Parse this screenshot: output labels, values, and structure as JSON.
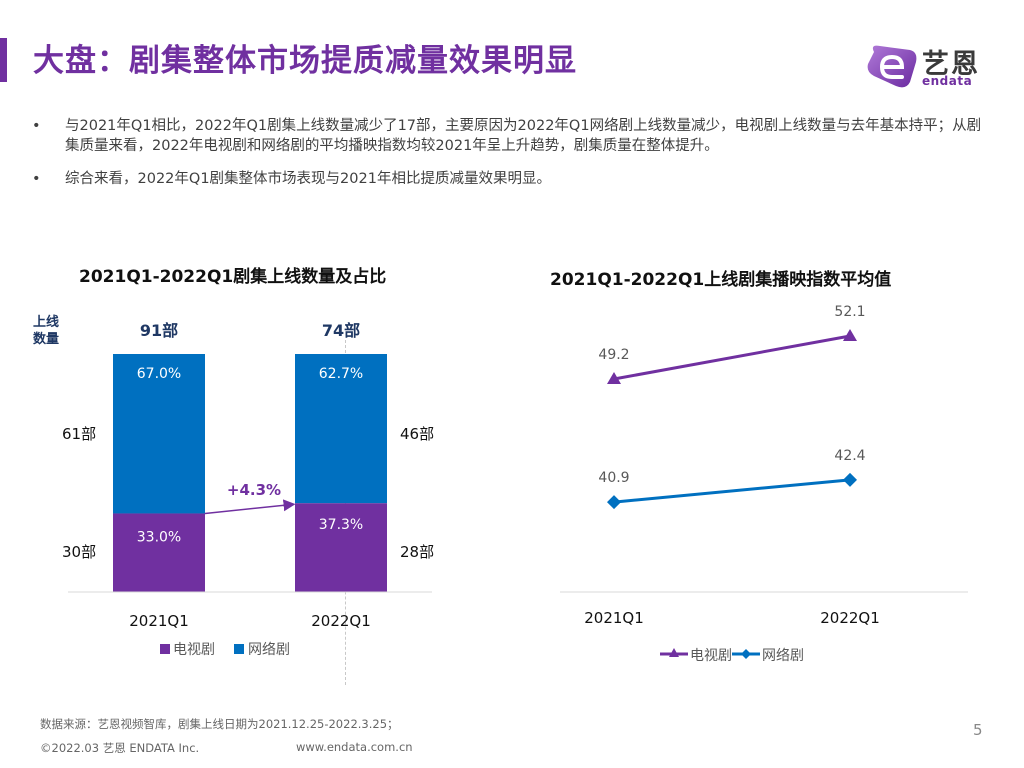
{
  "header": {
    "title": "大盘：剧集整体市场提质减量效果明显",
    "logo": {
      "cn": "艺恩",
      "en": "endata",
      "icon": "endata-e-logo-icon"
    }
  },
  "bullets": [
    "与2021年Q1相比，2022年Q1剧集上线数量减少了17部，主要原因为2022年Q1网络剧上线数量减少，电视剧上线数量与去年基本持平；从剧集质量来看，2022年电视剧和网络剧的平均播映指数均较2021年呈上升趋势，剧集质量在整体提升。",
    "综合来看，2022年Q1剧集整体市场表现与2021年相比提质减量效果明显。"
  ],
  "bullet_symbol": "•",
  "colors": {
    "accent": "#7030a0",
    "tv": "#7030a0",
    "net": "#0070c0",
    "total_label": "#1f3864"
  },
  "chart_data": [
    {
      "type": "bar",
      "stacked": true,
      "title": "2021Q1-2022Q1剧集上线数量及占比",
      "ylabel": "上线\n数量",
      "ylabel_lines": [
        "上线",
        "数量"
      ],
      "categories": [
        "2021Q1",
        "2022Q1"
      ],
      "totals": [
        91,
        74
      ],
      "total_labels": [
        "91部",
        "74部"
      ],
      "series": [
        {
          "name": "电视剧",
          "values": [
            30,
            28
          ],
          "value_labels": [
            "30部",
            "28部"
          ],
          "percent_labels": [
            "33.0%",
            "37.3%"
          ],
          "color": "#7030a0"
        },
        {
          "name": "网络剧",
          "values": [
            61,
            46
          ],
          "value_labels": [
            "61部",
            "46部"
          ],
          "percent_labels": [
            "67.0%",
            "62.7%"
          ],
          "color": "#0070c0"
        }
      ],
      "shares": {
        "电视剧": [
          33.0,
          37.3
        ],
        "网络剧": [
          67.0,
          62.7
        ]
      },
      "annotation": "+4.3%",
      "legend": [
        "电视剧",
        "网络剧"
      ],
      "legend_position": "bottom",
      "grid": false
    },
    {
      "type": "line",
      "title": "2021Q1-2022Q1上线剧集播映指数平均值",
      "categories": [
        "2021Q1",
        "2022Q1"
      ],
      "series": [
        {
          "name": "电视剧",
          "values": [
            49.2,
            52.1
          ],
          "labels": [
            "49.2",
            "52.1"
          ],
          "marker": "triangle",
          "color": "#7030a0"
        },
        {
          "name": "网络剧",
          "values": [
            40.9,
            42.4
          ],
          "labels": [
            "40.9",
            "42.4"
          ],
          "marker": "diamond",
          "color": "#0070c0"
        }
      ],
      "legend": [
        "电视剧",
        "网络剧"
      ],
      "legend_position": "bottom",
      "grid": false,
      "xlabel": "",
      "ylabel": ""
    }
  ],
  "footer": {
    "source": "数据来源：艺恩视频智库，剧集上线日期为2021.12.25-2022.3.25；",
    "copyright": "©2022.03 艺恩 ENDATA Inc.",
    "website": "www.endata.com.cn",
    "page_number": "5"
  }
}
